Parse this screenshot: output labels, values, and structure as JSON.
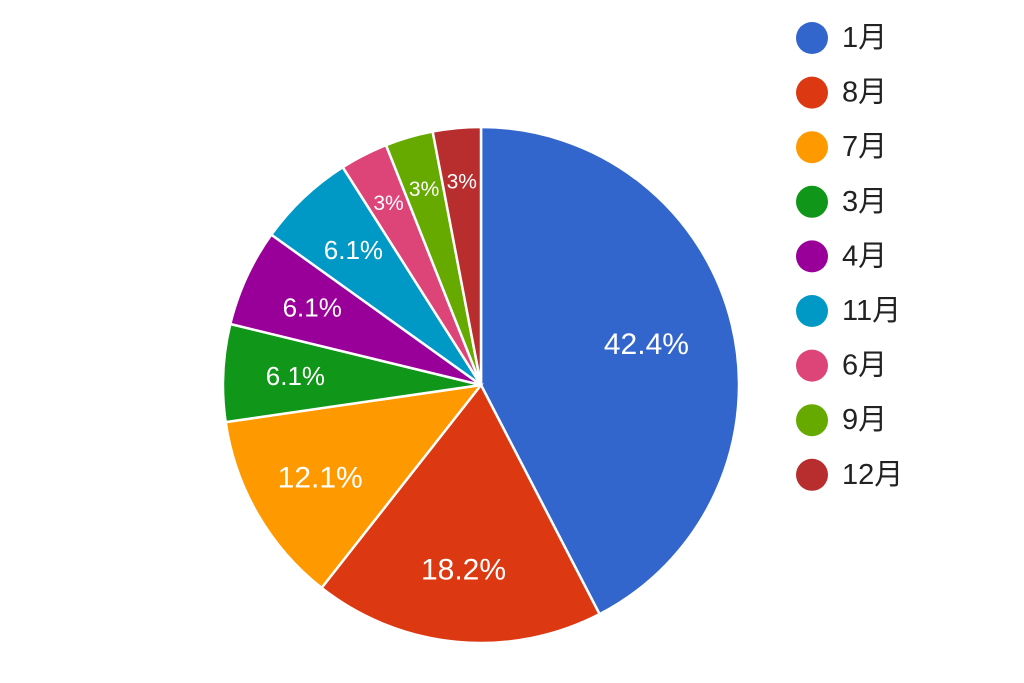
{
  "chart_data": {
    "type": "pie",
    "title": "",
    "legend_position": "right",
    "slices": [
      {
        "label": "1月",
        "value": 42.4,
        "display": "42.4%",
        "color": "#3366CC"
      },
      {
        "label": "8月",
        "value": 18.2,
        "display": "18.2%",
        "color": "#DC3912"
      },
      {
        "label": "7月",
        "value": 12.1,
        "display": "12.1%",
        "color": "#FF9900"
      },
      {
        "label": "3月",
        "value": 6.1,
        "display": "6.1%",
        "color": "#109618"
      },
      {
        "label": "4月",
        "value": 6.1,
        "display": "6.1%",
        "color": "#990099"
      },
      {
        "label": "11月",
        "value": 6.1,
        "display": "6.1%",
        "color": "#0099C6"
      },
      {
        "label": "6月",
        "value": 3,
        "display": "3%",
        "color": "#DD4477"
      },
      {
        "label": "9月",
        "value": 3,
        "display": "3%",
        "color": "#66AA00"
      },
      {
        "label": "12月",
        "value": 3,
        "display": "3%",
        "color": "#B82E2E"
      }
    ]
  }
}
